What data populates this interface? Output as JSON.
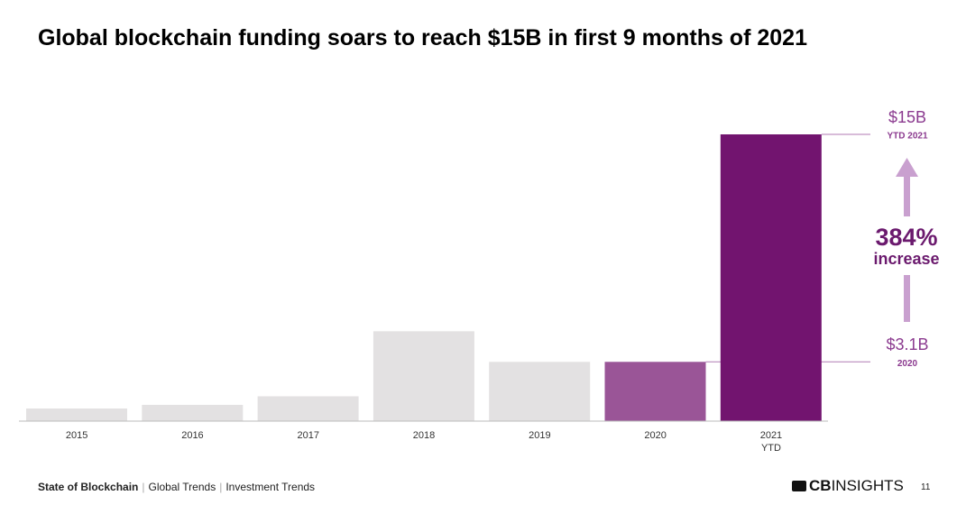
{
  "chart_data": {
    "type": "bar",
    "title": "Global blockchain funding soars to reach $15B in first 9 months of 2021",
    "categories": [
      "2015",
      "2016",
      "2017",
      "2018",
      "2019",
      "2020",
      "2021\nYTD"
    ],
    "values": [
      0.66,
      0.85,
      1.3,
      4.7,
      3.1,
      3.1,
      15
    ],
    "value_labels": [
      null,
      null,
      null,
      null,
      null,
      "$3.1B",
      "$15B"
    ],
    "value_sublabels": [
      null,
      null,
      null,
      null,
      null,
      "2020",
      "YTD 2021"
    ],
    "colors": [
      "#e3e1e2",
      "#e3e1e2",
      "#e3e1e2",
      "#e3e1e2",
      "#e3e1e2",
      "#9a5597",
      "#72146f"
    ],
    "annotation": {
      "value": "384%",
      "text": "increase"
    }
  },
  "footer": {
    "report": "State of Blockchain",
    "sections": [
      "Global Trends",
      "Investment Trends"
    ],
    "logo_bold": "CB",
    "logo_light": "INSIGHTS",
    "page_number": "11"
  }
}
